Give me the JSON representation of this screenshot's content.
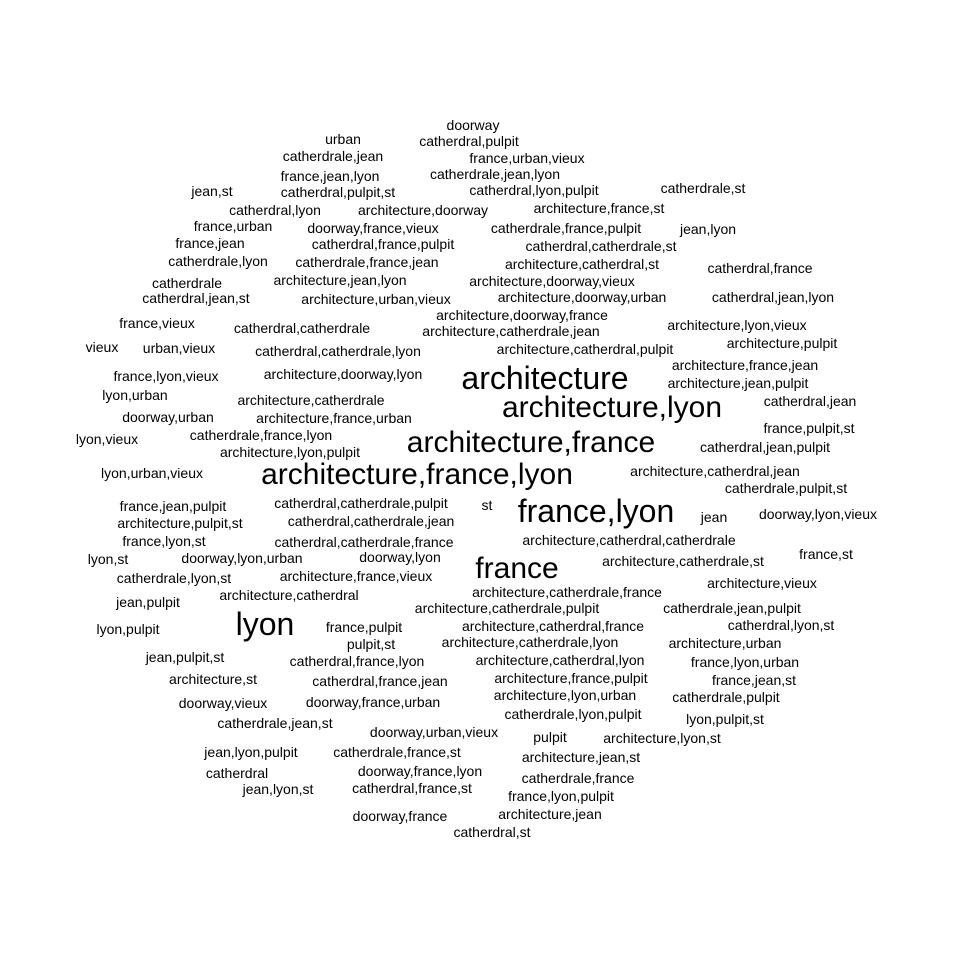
{
  "word_cloud": {
    "text_color": "#000000",
    "background": "#ffffff",
    "words": [
      "doorway",
      "urban",
      "catherdral,pulpit",
      "catherdrale,jean",
      "france,urban,vieux",
      "france,jean,lyon",
      "catherdrale,jean,lyon",
      "jean,st",
      "catherdral,pulpit,st",
      "catherdral,lyon,pulpit",
      "catherdrale,st",
      "catherdral,lyon",
      "architecture,doorway",
      "architecture,france,st",
      "france,urban",
      "doorway,france,vieux",
      "catherdrale,france,pulpit",
      "jean,lyon",
      "france,jean",
      "catherdral,france,pulpit",
      "catherdral,catherdrale,st",
      "catherdrale,lyon",
      "catherdrale,france,jean",
      "architecture,catherdral,st",
      "catherdral,france",
      "catherdrale",
      "architecture,jean,lyon",
      "architecture,doorway,vieux",
      "catherdral,jean,st",
      "architecture,urban,vieux",
      "architecture,doorway,urban",
      "catherdral,jean,lyon",
      "architecture,doorway,france",
      "france,vieux",
      "catherdral,catherdrale",
      "architecture,catherdrale,jean",
      "architecture,lyon,vieux",
      "architecture,pulpit",
      "vieux",
      "urban,vieux",
      "catherdral,catherdrale,lyon",
      "architecture,catherdral,pulpit",
      "architecture,france,jean",
      "france,lyon,vieux",
      "architecture,doorway,lyon",
      "architecture",
      "architecture,jean,pulpit",
      "lyon,urban",
      "architecture,catherdrale",
      "architecture,lyon",
      "catherdral,jean",
      "doorway,urban",
      "architecture,france,urban",
      "france,pulpit,st",
      "lyon,vieux",
      "catherdrale,france,lyon",
      "architecture,france",
      "architecture,lyon,pulpit",
      "catherdral,jean,pulpit",
      "lyon,urban,vieux",
      "architecture,france,lyon",
      "architecture,catherdral,jean",
      "catherdrale,pulpit,st",
      "france,jean,pulpit",
      "catherdral,catherdrale,pulpit",
      "st",
      "france,lyon",
      "architecture,pulpit,st",
      "catherdral,catherdrale,jean",
      "jean",
      "doorway,lyon,vieux",
      "france,lyon,st",
      "catherdral,catherdrale,france",
      "architecture,catherdral,catherdrale",
      "lyon,st",
      "doorway,lyon,urban",
      "doorway,lyon",
      "architecture,catherdrale,st",
      "france,st",
      "france",
      "catherdrale,lyon,st",
      "architecture,france,vieux",
      "architecture,vieux",
      "architecture,catherdrale,france",
      "jean,pulpit",
      "architecture,catherdral",
      "architecture,catherdrale,pulpit",
      "catherdrale,jean,pulpit",
      "lyon,pulpit",
      "lyon",
      "france,pulpit",
      "architecture,catherdral,france",
      "catherdral,lyon,st",
      "pulpit,st",
      "architecture,catherdrale,lyon",
      "architecture,urban",
      "jean,pulpit,st",
      "catherdral,france,lyon",
      "architecture,catherdral,lyon",
      "france,lyon,urban",
      "architecture,st",
      "catherdral,france,jean",
      "architecture,france,pulpit",
      "france,jean,st",
      "architecture,lyon,urban",
      "catherdrale,pulpit",
      "doorway,vieux",
      "doorway,france,urban",
      "catherdrale,lyon,pulpit",
      "lyon,pulpit,st",
      "catherdrale,jean,st",
      "doorway,urban,vieux",
      "pulpit",
      "architecture,lyon,st",
      "jean,lyon,pulpit",
      "catherdrale,france,st",
      "architecture,jean,st",
      "catherdral",
      "doorway,france,lyon",
      "catherdrale,france",
      "jean,lyon,st",
      "catherdral,france,st",
      "france,lyon,pulpit",
      "doorway,france",
      "architecture,jean",
      "catherdral,st"
    ]
  }
}
